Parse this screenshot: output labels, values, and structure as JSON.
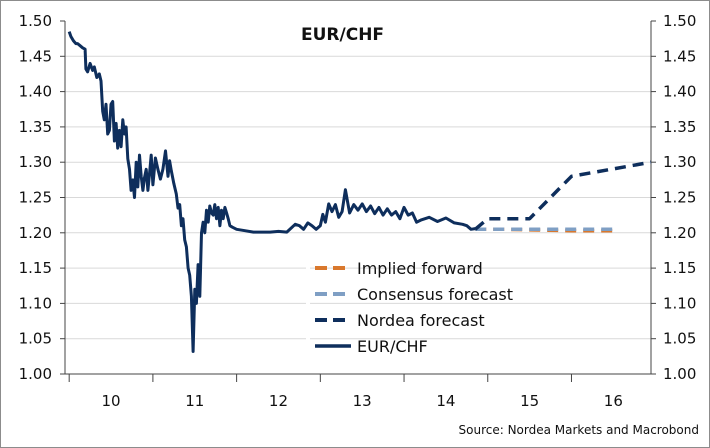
{
  "chart_data": {
    "type": "line",
    "title": "EUR/CHF",
    "source": "Source: Nordea Markets and Macrobond",
    "x_tick_labels": [
      "10",
      "11",
      "12",
      "13",
      "14",
      "15",
      "16"
    ],
    "y_tick_labels": [
      "1.50",
      "1.45",
      "1.40",
      "1.35",
      "1.30",
      "1.25",
      "1.20",
      "1.15",
      "1.10",
      "1.05",
      "1.00"
    ],
    "ylim": [
      1.0,
      1.5
    ],
    "xlim": [
      2009.95,
      2016.95
    ],
    "y_axis_right": true,
    "grid": "horizontal",
    "legend_position": "lower-center",
    "series": [
      {
        "name": "Implied forward",
        "style": "dashed",
        "color": "#d9782d",
        "x": [
          2014.85,
          2015.2,
          2015.6,
          2016.0,
          2016.55
        ],
        "y": [
          1.205,
          1.205,
          1.204,
          1.203,
          1.203
        ]
      },
      {
        "name": "Consensus forecast",
        "style": "dashed",
        "color": "#7f9fc4",
        "x": [
          2014.85,
          2015.0,
          2015.5,
          2016.0,
          2016.55
        ],
        "y": [
          1.205,
          1.205,
          1.205,
          1.205,
          1.205
        ]
      },
      {
        "name": "Nordea forecast",
        "style": "dashed",
        "color": "#0e2e5c",
        "x": [
          2014.85,
          2015.0,
          2015.5,
          2015.75,
          2016.0,
          2016.95
        ],
        "y": [
          1.205,
          1.22,
          1.22,
          1.25,
          1.28,
          1.3
        ]
      },
      {
        "name": "EUR/CHF",
        "style": "solid",
        "color": "#0e2e5c",
        "x": [
          2010.0,
          2010.02,
          2010.05,
          2010.08,
          2010.1,
          2010.13,
          2010.16,
          2010.19,
          2010.2,
          2010.22,
          2010.25,
          2010.28,
          2010.3,
          2010.33,
          2010.36,
          2010.38,
          2010.4,
          2010.42,
          2010.44,
          2010.46,
          2010.48,
          2010.5,
          2010.52,
          2010.54,
          2010.56,
          2010.58,
          2010.6,
          2010.62,
          2010.64,
          2010.66,
          2010.68,
          2010.7,
          2010.72,
          2010.74,
          2010.76,
          2010.78,
          2010.8,
          2010.82,
          2010.84,
          2010.86,
          2010.88,
          2010.9,
          2010.92,
          2010.94,
          2010.96,
          2010.98,
          2011.0,
          2011.03,
          2011.06,
          2011.09,
          2011.12,
          2011.15,
          2011.18,
          2011.2,
          2011.22,
          2011.25,
          2011.28,
          2011.3,
          2011.32,
          2011.34,
          2011.36,
          2011.38,
          2011.4,
          2011.42,
          2011.44,
          2011.46,
          2011.48,
          2011.5,
          2011.52,
          2011.54,
          2011.56,
          2011.58,
          2011.6,
          2011.62,
          2011.64,
          2011.66,
          2011.68,
          2011.7,
          2011.72,
          2011.74,
          2011.76,
          2011.78,
          2011.8,
          2011.82,
          2011.84,
          2011.86,
          2011.88,
          2011.9,
          2011.92,
          2011.95,
          2012.0,
          2012.1,
          2012.2,
          2012.3,
          2012.4,
          2012.5,
          2012.6,
          2012.7,
          2012.75,
          2012.8,
          2012.85,
          2012.9,
          2012.95,
          2013.0,
          2013.03,
          2013.06,
          2013.1,
          2013.14,
          2013.18,
          2013.22,
          2013.26,
          2013.3,
          2013.35,
          2013.4,
          2013.45,
          2013.5,
          2013.55,
          2013.6,
          2013.65,
          2013.7,
          2013.75,
          2013.8,
          2013.85,
          2013.9,
          2013.95,
          2014.0,
          2014.05,
          2014.1,
          2014.15,
          2014.2,
          2014.3,
          2014.4,
          2014.5,
          2014.6,
          2014.7,
          2014.75,
          2014.8,
          2014.85
        ],
        "y": [
          1.485,
          1.478,
          1.472,
          1.468,
          1.468,
          1.465,
          1.462,
          1.46,
          1.432,
          1.428,
          1.44,
          1.43,
          1.435,
          1.42,
          1.425,
          1.415,
          1.372,
          1.36,
          1.382,
          1.34,
          1.345,
          1.382,
          1.386,
          1.33,
          1.355,
          1.32,
          1.345,
          1.322,
          1.36,
          1.34,
          1.35,
          1.305,
          1.29,
          1.26,
          1.275,
          1.25,
          1.3,
          1.265,
          1.31,
          1.28,
          1.26,
          1.278,
          1.29,
          1.26,
          1.285,
          1.31,
          1.268,
          1.306,
          1.29,
          1.276,
          1.29,
          1.316,
          1.28,
          1.302,
          1.288,
          1.27,
          1.255,
          1.235,
          1.24,
          1.21,
          1.22,
          1.19,
          1.18,
          1.15,
          1.14,
          1.11,
          1.032,
          1.12,
          1.1,
          1.155,
          1.11,
          1.2,
          1.215,
          1.2,
          1.232,
          1.215,
          1.238,
          1.228,
          1.225,
          1.24,
          1.22,
          1.236,
          1.21,
          1.232,
          1.22,
          1.236,
          1.228,
          1.22,
          1.21,
          1.208,
          1.205,
          1.203,
          1.201,
          1.201,
          1.201,
          1.202,
          1.201,
          1.212,
          1.21,
          1.205,
          1.214,
          1.21,
          1.205,
          1.21,
          1.226,
          1.215,
          1.241,
          1.23,
          1.24,
          1.222,
          1.23,
          1.261,
          1.228,
          1.24,
          1.232,
          1.241,
          1.23,
          1.238,
          1.227,
          1.236,
          1.225,
          1.234,
          1.225,
          1.23,
          1.22,
          1.236,
          1.225,
          1.228,
          1.215,
          1.218,
          1.222,
          1.216,
          1.221,
          1.214,
          1.212,
          1.21,
          1.205,
          1.206
        ]
      }
    ]
  }
}
